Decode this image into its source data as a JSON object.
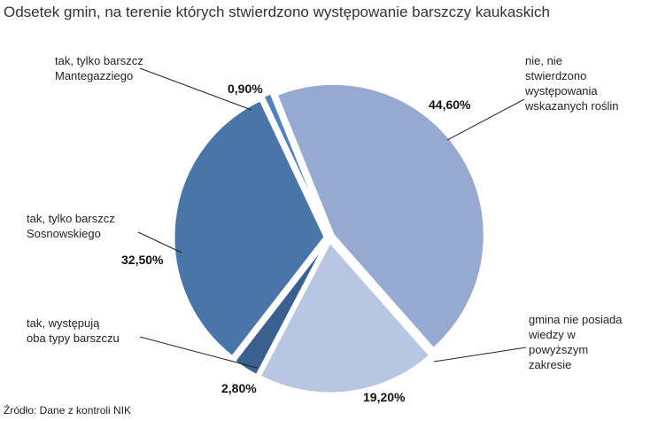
{
  "chart_data": {
    "type": "pie",
    "title": "Odsetek gmin, na terenie których stwierdzono występowanie barszczy kaukaskich",
    "categories": [
      "nie, nie\nstwierdzono\nwystępowania\nwskazanych roślin",
      "gmina nie posiada\nwiedzy w\npowyższym\nzakresie",
      "tak, występują\noba typy barszczu",
      "tak, tylko barszcz\nSosnowskiego",
      "tak, tylko barszcz\nMantegazziego"
    ],
    "values": [
      44.6,
      19.2,
      2.8,
      32.5,
      0.9
    ],
    "value_labels": [
      "44,60%",
      "19,20%",
      "2,80%",
      "32,50%",
      "0,90%"
    ],
    "colors": [
      "#95a9d1",
      "#b9c6e1",
      "#3b5f8f",
      "#4a75a9",
      "#4f81bd"
    ],
    "source": "Źródło: Dane z kontroli NIK"
  }
}
